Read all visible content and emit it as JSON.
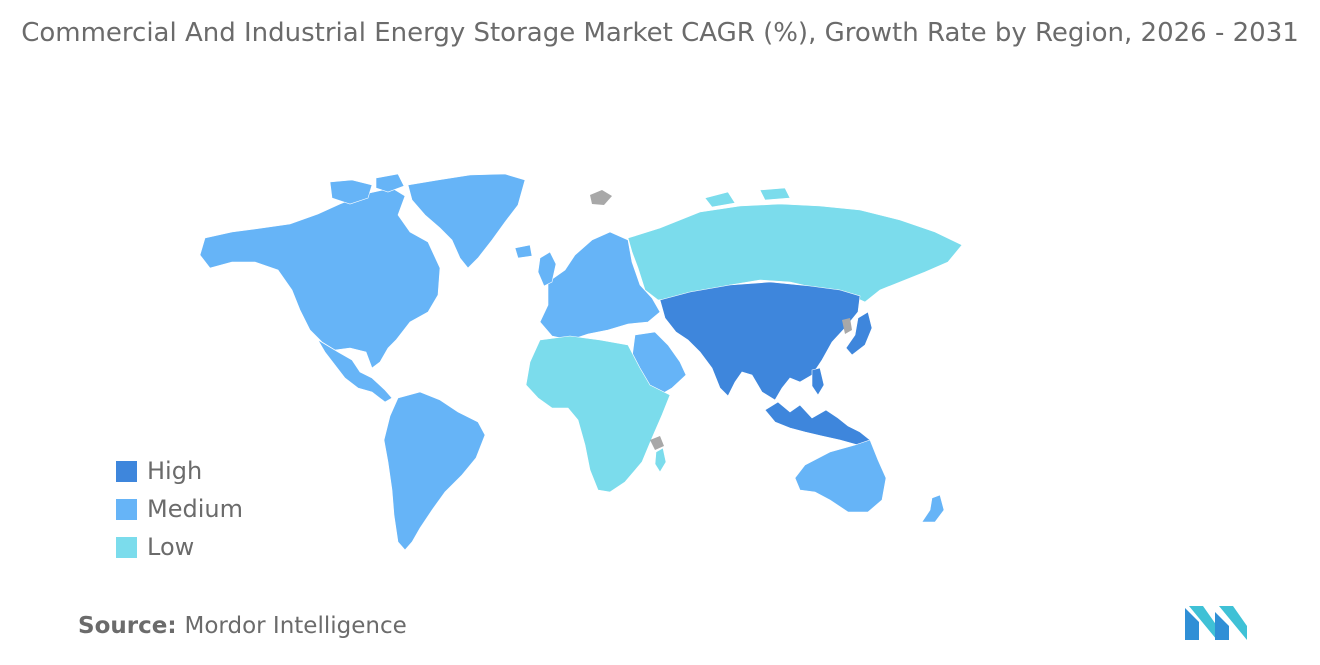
{
  "title": "Commercial And Industrial Energy Storage Market CAGR (%), Growth Rate by Region, 2026 - 2031",
  "legend": [
    {
      "label": "High",
      "color": "#3e86dc"
    },
    {
      "label": "Medium",
      "color": "#66b4f7"
    },
    {
      "label": "Low",
      "color": "#7bdcec"
    }
  ],
  "no_data_color": "#a8a8a8",
  "source": {
    "label": "Source:",
    "value": "Mordor Intelligence"
  },
  "logo": {
    "name": "mordor-intelligence-logo",
    "colors": [
      "#2f8fd6",
      "#3fc1d6"
    ]
  },
  "regions": [
    {
      "name": "North America",
      "category": "Medium"
    },
    {
      "name": "South America",
      "category": "Medium"
    },
    {
      "name": "Europe",
      "category": "Medium"
    },
    {
      "name": "Middle East",
      "category": "Medium"
    },
    {
      "name": "Australia and New Zealand",
      "category": "Medium"
    },
    {
      "name": "Asia Pacific",
      "category": "High"
    },
    {
      "name": "Russia",
      "category": "Low"
    },
    {
      "name": "Africa",
      "category": "Low"
    }
  ]
}
